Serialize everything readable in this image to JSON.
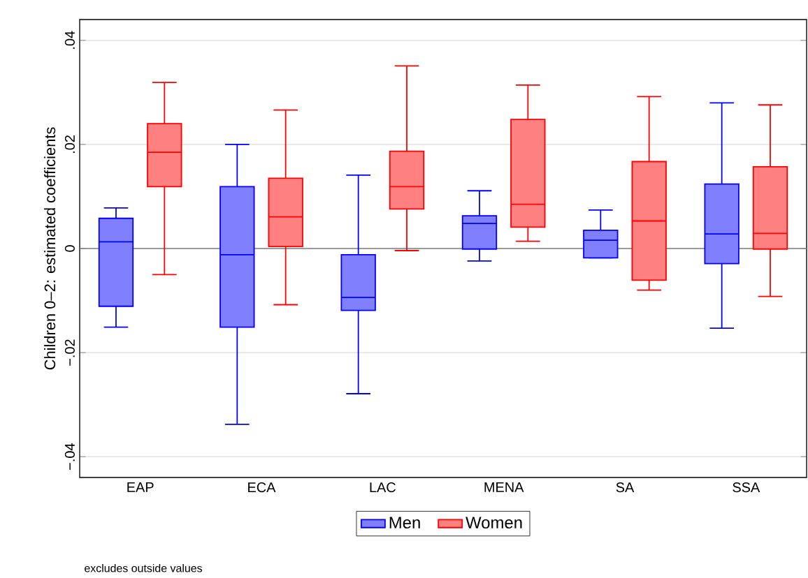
{
  "chart_data": {
    "type": "box",
    "ylabel": "Children 0–2: estimated coefficients",
    "categories": [
      "EAP",
      "ECA",
      "LAC",
      "MENA",
      "SA",
      "SSA"
    ],
    "series": [
      {
        "name": "Men",
        "color": "#0000ff",
        "boxes": [
          {
            "low": -0.0151,
            "q1": -0.0111,
            "median": 0.0013,
            "q3": 0.0058,
            "high": 0.0078
          },
          {
            "low": -0.0338,
            "q1": -0.0151,
            "median": -0.0012,
            "q3": 0.0119,
            "high": 0.02
          },
          {
            "low": -0.0279,
            "q1": -0.0119,
            "median": -0.0094,
            "q3": -0.0012,
            "high": 0.0141
          },
          {
            "low": -0.0024,
            "q1": -0.0001,
            "median": 0.0048,
            "q3": 0.0063,
            "high": 0.0111
          },
          {
            "low": -0.0018,
            "q1": -0.0018,
            "median": 0.0016,
            "q3": 0.0035,
            "high": 0.0074
          },
          {
            "low": -0.0153,
            "q1": -0.0029,
            "median": 0.0028,
            "q3": 0.0124,
            "high": 0.028
          }
        ]
      },
      {
        "name": "Women",
        "color": "#ff0000",
        "boxes": [
          {
            "low": -0.005,
            "q1": 0.0119,
            "median": 0.0185,
            "q3": 0.024,
            "high": 0.0319
          },
          {
            "low": -0.0108,
            "q1": 0.0004,
            "median": 0.0061,
            "q3": 0.0135,
            "high": 0.0266
          },
          {
            "low": -0.0004,
            "q1": 0.0076,
            "median": 0.0119,
            "q3": 0.0187,
            "high": 0.0351
          },
          {
            "low": 0.0014,
            "q1": 0.0041,
            "median": 0.0085,
            "q3": 0.0248,
            "high": 0.0314
          },
          {
            "low": -0.008,
            "q1": -0.0061,
            "median": 0.0053,
            "q3": 0.0167,
            "high": 0.0292
          },
          {
            "low": -0.0092,
            "q1": -0.0001,
            "median": 0.0029,
            "q3": 0.0157,
            "high": 0.0276
          }
        ]
      }
    ],
    "ylim": [
      -0.044,
      0.044
    ],
    "yticks": [
      {
        "value": -0.04,
        "label": "−.04"
      },
      {
        "value": -0.02,
        "label": "−.02"
      },
      0,
      {
        "value": 0.02,
        "label": ".02"
      },
      {
        "value": 0.04,
        "label": ".04"
      }
    ],
    "grid": "y",
    "legend": "bottom",
    "ref_lines": [
      {
        "axis": "y",
        "value": 0,
        "color": "#808080"
      }
    ],
    "annotations": [
      "excludes outside values"
    ]
  }
}
